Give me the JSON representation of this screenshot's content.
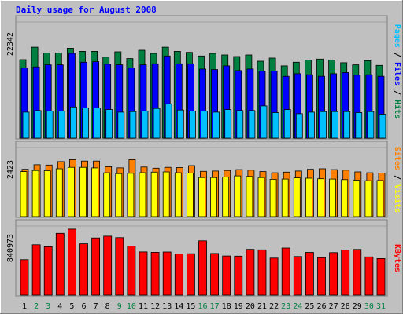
{
  "colors": {
    "background": "#c0c0c0",
    "title": "#0000ff",
    "hits": "#008040",
    "files": "#0000ff",
    "pages": "#00c0ff",
    "visits": "#ffff00",
    "sites": "#ff8000",
    "kbytes": "#ff0000",
    "weekend_day": "#008040",
    "weekday": "#000000"
  },
  "chart_data": {
    "type": "bar",
    "title": "Daily usage for August 2008",
    "categories": [
      "1",
      "2",
      "3",
      "4",
      "5",
      "6",
      "7",
      "8",
      "9",
      "10",
      "11",
      "12",
      "13",
      "14",
      "15",
      "16",
      "17",
      "18",
      "19",
      "20",
      "21",
      "22",
      "23",
      "24",
      "25",
      "26",
      "27",
      "28",
      "29",
      "30",
      "31"
    ],
    "weekend_days": [
      "2",
      "3",
      "9",
      "10",
      "16",
      "17",
      "23",
      "24",
      "30",
      "31"
    ],
    "panels": [
      {
        "id": "hits-files-pages",
        "axis_max_label": "22342",
        "ylim": [
          0,
          22342
        ],
        "right_label": [
          "Pages",
          "Files",
          "Hits"
        ],
        "series": [
          {
            "name": "Hits",
            "values": [
              15100,
              17500,
              16400,
              16400,
              17300,
              16700,
              16700,
              15600,
              16600,
              15300,
              16900,
              16300,
              17500,
              16700,
              16500,
              15800,
              16300,
              16000,
              15700,
              16000,
              14800,
              15400,
              13900,
              14600,
              15000,
              15200,
              15000,
              14500,
              14100,
              14900,
              14000
            ]
          },
          {
            "name": "Files",
            "values": [
              13500,
              13700,
              14100,
              14100,
              16300,
              14600,
              14700,
              14200,
              14100,
              13500,
              14100,
              14300,
              15800,
              14300,
              14300,
              13300,
              13200,
              13900,
              13000,
              13300,
              12900,
              12900,
              11900,
              12400,
              12200,
              11900,
              12400,
              12600,
              12100,
              12200,
              11900
            ]
          },
          {
            "name": "Pages",
            "values": [
              5000,
              5300,
              5200,
              5200,
              6000,
              5800,
              5800,
              5500,
              5000,
              5100,
              5200,
              5700,
              6600,
              5400,
              5200,
              5200,
              5000,
              5500,
              5300,
              5300,
              6200,
              4900,
              5500,
              4700,
              5000,
              5100,
              5100,
              5100,
              4900,
              5100,
              4600
            ]
          }
        ]
      },
      {
        "id": "visits-sites",
        "axis_max_label": "2423",
        "ylim": [
          0,
          2423
        ],
        "right_label": [
          "Sites",
          "Visits"
        ],
        "series": [
          {
            "name": "Visits",
            "values": [
              1580,
              1620,
              1610,
              1680,
              1730,
              1730,
              1710,
              1540,
              1510,
              1520,
              1540,
              1560,
              1570,
              1540,
              1530,
              1370,
              1370,
              1390,
              1430,
              1410,
              1370,
              1310,
              1320,
              1360,
              1350,
              1330,
              1320,
              1300,
              1280,
              1260,
              1270
            ]
          },
          {
            "name": "Sites",
            "values": [
              1660,
              1820,
              1810,
              1930,
              2000,
              1950,
              1950,
              1750,
              1710,
              2000,
              1740,
              1700,
              1730,
              1720,
              1790,
              1590,
              1600,
              1620,
              1650,
              1630,
              1580,
              1540,
              1560,
              1600,
              1660,
              1680,
              1650,
              1630,
              1570,
              1540,
              1530
            ]
          }
        ]
      },
      {
        "id": "kbytes",
        "axis_max_label": "840973",
        "ylim": [
          0,
          840973
        ],
        "right_label": [
          "KBytes"
        ],
        "series": [
          {
            "name": "KBytes",
            "values": [
              432000,
              614000,
              589000,
              752000,
              804000,
              625000,
              696000,
              718000,
              700000,
              596000,
              527000,
              522000,
              526000,
              502000,
              505000,
              661000,
              507000,
              477000,
              475000,
              557000,
              551000,
              451000,
              573000,
              470000,
              521000,
              456000,
              518000,
              550000,
              556000,
              465000,
              445000
            ]
          }
        ]
      }
    ]
  }
}
